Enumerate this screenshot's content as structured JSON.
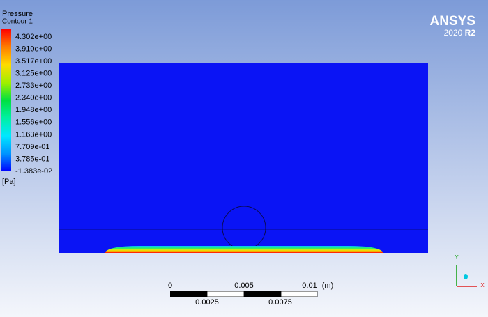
{
  "legend": {
    "title": "Pressure",
    "subtitle": "Contour 1",
    "labels": [
      "4.302e+00",
      "3.910e+00",
      "3.517e+00",
      "3.125e+00",
      "2.733e+00",
      "2.340e+00",
      "1.948e+00",
      "1.556e+00",
      "1.163e+00",
      "7.709e-01",
      "3.785e-01",
      "-1.383e-02"
    ],
    "unit": "[Pa]"
  },
  "logo": {
    "name": "ANSYS",
    "version": "2020",
    "release": "R2"
  },
  "scale_bar": {
    "top_labels": [
      "0",
      "0.005",
      "0.01"
    ],
    "unit": "(m)",
    "bottom_labels": [
      "0.0025",
      "0.0075"
    ]
  },
  "triad": {
    "y": "Y",
    "x": "X"
  }
}
